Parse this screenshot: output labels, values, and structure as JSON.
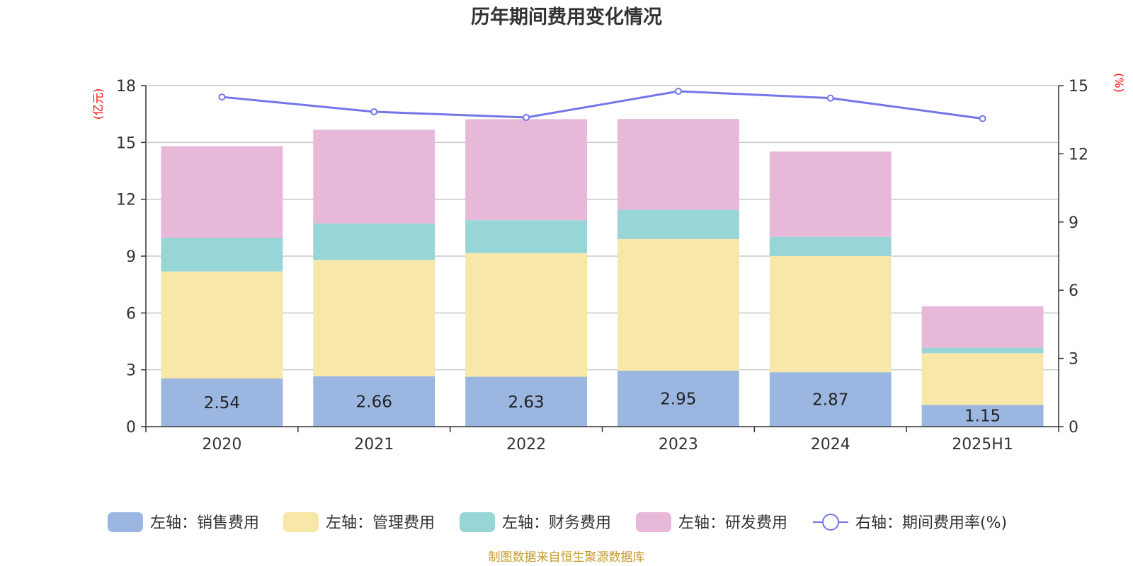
{
  "chart_data": {
    "type": "bar",
    "title": "历年期间费用变化情况",
    "categories": [
      "2020",
      "2021",
      "2022",
      "2023",
      "2024",
      "2025H1"
    ],
    "left_axis": {
      "unit": "(亿元)",
      "ylim": [
        0,
        18
      ],
      "ticks": [
        "0",
        "3",
        "6",
        "9",
        "12",
        "15",
        "18"
      ]
    },
    "right_axis": {
      "unit": "(%)",
      "ylim": [
        0,
        15
      ],
      "ticks": [
        "0",
        "3",
        "6",
        "9",
        "12",
        "15"
      ]
    },
    "grid": true,
    "legend_position": "bottom",
    "series": [
      {
        "name": "左轴：销售费用",
        "type": "bar",
        "axis": "left",
        "stack": true,
        "color": "#9bb7e1",
        "values": [
          2.54,
          2.66,
          2.63,
          2.95,
          2.87,
          1.15
        ],
        "labels": [
          "2.54",
          "2.66",
          "2.63",
          "2.95",
          "2.87",
          "1.15"
        ]
      },
      {
        "name": "左轴：管理费用",
        "type": "bar",
        "axis": "left",
        "stack": true,
        "color": "#f7e7a9",
        "values": [
          5.65,
          6.14,
          6.53,
          6.95,
          6.13,
          2.72
        ]
      },
      {
        "name": "左轴：财务费用",
        "type": "bar",
        "axis": "left",
        "stack": true,
        "color": "#98d5d6",
        "values": [
          1.78,
          1.92,
          1.74,
          1.54,
          1.02,
          0.3
        ]
      },
      {
        "name": "左轴：研发费用",
        "type": "bar",
        "axis": "left",
        "stack": true,
        "color": "#e8b8d9",
        "values": [
          4.83,
          4.95,
          5.33,
          4.8,
          4.5,
          2.18
        ]
      },
      {
        "name": "右轴：期间费用率(%)",
        "type": "line",
        "axis": "right",
        "color": "#7376e8",
        "values": [
          14.5,
          13.85,
          13.6,
          14.75,
          14.45,
          13.55
        ]
      }
    ]
  },
  "footer": {
    "source": "制图数据来自恒生聚源数据库"
  }
}
